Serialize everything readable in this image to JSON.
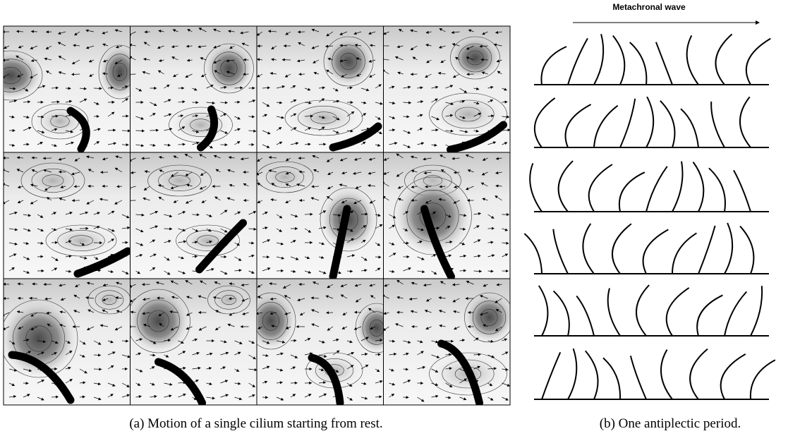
{
  "figure": {
    "header": "Metachronal wave",
    "captions": {
      "a": "(a) Motion of a single cilium starting from rest.",
      "b": "(b) One antiplectic period."
    }
  }
}
